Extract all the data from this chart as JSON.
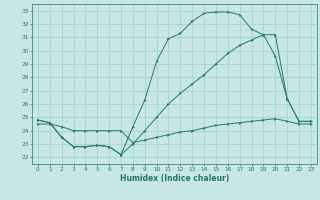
{
  "xlabel": "Humidex (Indice chaleur)",
  "bg_color": "#c8e6e6",
  "grid_color": "#9ecece",
  "line_color": "#1e7b6e",
  "xlim": [
    -0.5,
    23.5
  ],
  "ylim": [
    21.5,
    33.5
  ],
  "xticks": [
    0,
    1,
    2,
    3,
    4,
    5,
    6,
    7,
    8,
    9,
    10,
    11,
    12,
    13,
    14,
    15,
    16,
    17,
    18,
    19,
    20,
    21,
    22,
    23
  ],
  "yticks": [
    22,
    23,
    24,
    25,
    26,
    27,
    28,
    29,
    30,
    31,
    32,
    33
  ],
  "line1_x": [
    0,
    1,
    2,
    3,
    4,
    5,
    6,
    7,
    8,
    9,
    10,
    11,
    12,
    13,
    14,
    15,
    16,
    17,
    18,
    19,
    20,
    21,
    22,
    23
  ],
  "line1_y": [
    24.8,
    24.6,
    23.5,
    22.8,
    22.8,
    22.9,
    22.8,
    22.2,
    24.3,
    26.3,
    29.2,
    30.9,
    31.3,
    32.2,
    32.8,
    32.9,
    32.9,
    32.7,
    31.6,
    31.2,
    29.6,
    26.4,
    24.7,
    24.7
  ],
  "line2_x": [
    0,
    1,
    2,
    3,
    4,
    5,
    6,
    7,
    8,
    9,
    10,
    11,
    12,
    13,
    14,
    15,
    16,
    17,
    18,
    19,
    20,
    21,
    22,
    23
  ],
  "line2_y": [
    24.8,
    24.6,
    23.5,
    22.8,
    22.8,
    22.9,
    22.8,
    22.2,
    23.0,
    24.0,
    25.0,
    26.0,
    26.8,
    27.5,
    28.2,
    29.0,
    29.8,
    30.4,
    30.8,
    31.2,
    31.2,
    26.4,
    24.7,
    24.7
  ],
  "line3_x": [
    0,
    1,
    2,
    3,
    4,
    5,
    6,
    7,
    8,
    9,
    10,
    11,
    12,
    13,
    14,
    15,
    16,
    17,
    18,
    19,
    20,
    21,
    22,
    23
  ],
  "line3_y": [
    24.5,
    24.5,
    24.3,
    24.0,
    24.0,
    24.0,
    24.0,
    24.0,
    23.1,
    23.3,
    23.5,
    23.7,
    23.9,
    24.0,
    24.2,
    24.4,
    24.5,
    24.6,
    24.7,
    24.8,
    24.9,
    24.7,
    24.5,
    24.5
  ]
}
